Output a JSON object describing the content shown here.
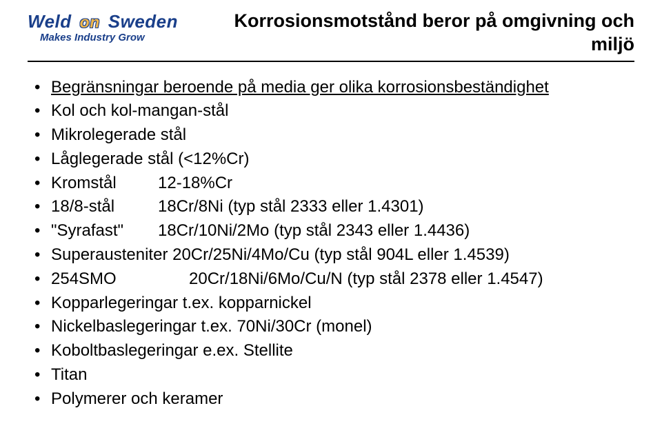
{
  "logo": {
    "weld": "Weld",
    "on": "on",
    "sweden": "Sweden",
    "tagline": "Makes Industry Grow"
  },
  "title": "Korrosionsmotstånd beror på omgivning och miljö",
  "bullets": [
    {
      "text": "Begränsningar beroende på media ger olika korrosionsbeständighet",
      "underline": true
    },
    {
      "text": "Kol och kol-mangan-stål"
    },
    {
      "text": "Mikrolegerade stål"
    },
    {
      "text": "Låglegerade stål (<12%Cr)"
    },
    {
      "label": "Kromstål",
      "value": "12-18%Cr"
    },
    {
      "label": "18/8-stål",
      "value": "18Cr/8Ni (typ stål 2333 eller 1.4301)"
    },
    {
      "label": "\"Syrafast\"",
      "value": "18Cr/10Ni/2Mo (typ stål 2343 eller 1.4436)"
    },
    {
      "text": "Superausteniter 20Cr/25Ni/4Mo/Cu (typ stål 904L eller 1.4539)"
    },
    {
      "label": "254SMO",
      "value": "20Cr/18Ni/6Mo/Cu/N (typ stål 2378 eller 1.4547)",
      "wide": true
    },
    {
      "text": "Kopparlegeringar t.ex. kopparnickel"
    },
    {
      "text": "Nickelbaslegeringar t.ex. 70Ni/30Cr (monel)"
    },
    {
      "text": "Koboltbaslegeringar e.ex. Stellite"
    },
    {
      "text": "Titan"
    },
    {
      "text": "Polymerer och keramer"
    }
  ]
}
